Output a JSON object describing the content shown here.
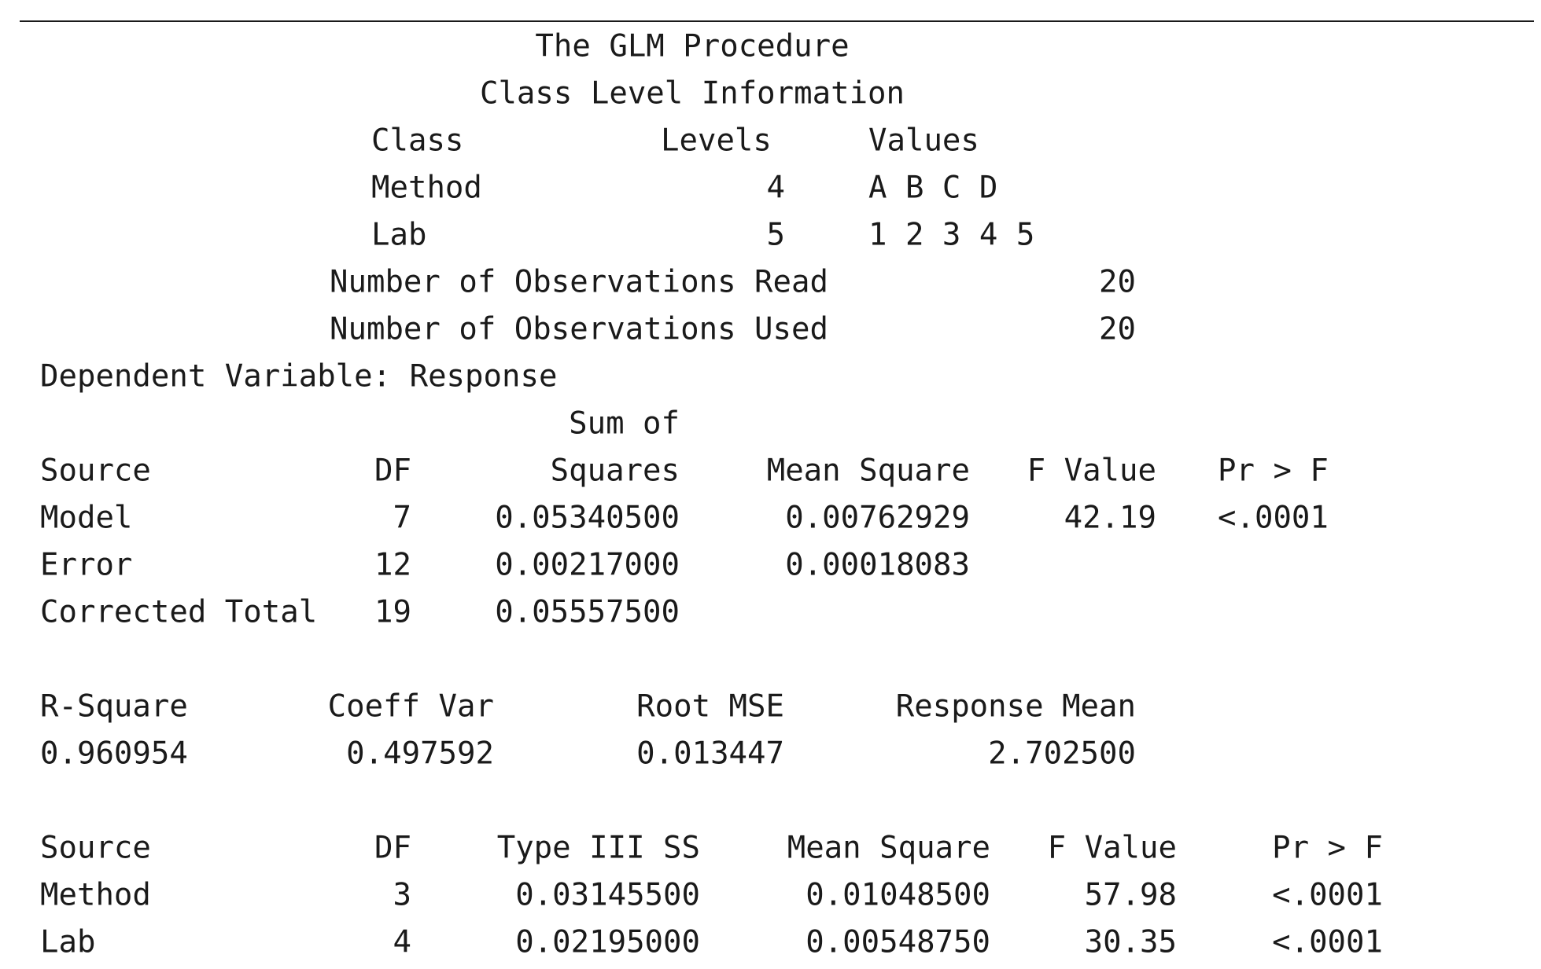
{
  "procedure_title": "The GLM Procedure",
  "class_info": {
    "title": "Class Level Information",
    "headers": {
      "class": "Class",
      "levels": "Levels",
      "values": "Values"
    },
    "rows": [
      {
        "class": "Method",
        "levels": "4",
        "values": "A B C D"
      },
      {
        "class": "Lab",
        "levels": "5",
        "values": "1 2 3 4 5"
      }
    ]
  },
  "observations": {
    "read_label": "Number of Observations Read",
    "read_value": "20",
    "used_label": "Number of Observations Used",
    "used_value": "20"
  },
  "dependent_variable": "Dependent Variable: Response",
  "anova": {
    "headers": {
      "source": "Source",
      "df": "DF",
      "ss_top": "Sum of",
      "ss_bottom": "Squares",
      "ms": "Mean Square",
      "f": "F Value",
      "p": "Pr > F"
    },
    "rows": [
      {
        "source": "Model",
        "df": "7",
        "ss": "0.05340500",
        "ms": "0.00762929",
        "f": "42.19",
        "p": "<.0001"
      },
      {
        "source": "Error",
        "df": "12",
        "ss": "0.00217000",
        "ms": "0.00018083",
        "f": "",
        "p": ""
      },
      {
        "source": "Corrected Total",
        "df": "19",
        "ss": "0.05557500",
        "ms": "",
        "f": "",
        "p": ""
      }
    ]
  },
  "fit_stats": {
    "headers": {
      "rsq": "R-Square",
      "cv": "Coeff Var",
      "rmse": "Root MSE",
      "mean": "Response Mean"
    },
    "values": {
      "rsq": "0.960954",
      "cv": "0.497592",
      "rmse": "0.013447",
      "mean": "2.702500"
    }
  },
  "type3": {
    "headers": {
      "source": "Source",
      "df": "DF",
      "ss": "Type III SS",
      "ms": "Mean Square",
      "f": "F Value",
      "p": "Pr > F"
    },
    "rows": [
      {
        "source": "Method",
        "df": "3",
        "ss": "0.03145500",
        "ms": "0.01048500",
        "f": "57.98",
        "p": "<.0001"
      },
      {
        "source": "Lab",
        "df": "4",
        "ss": "0.02195000",
        "ms": "0.00548750",
        "f": "30.35",
        "p": "<.0001"
      }
    ]
  }
}
